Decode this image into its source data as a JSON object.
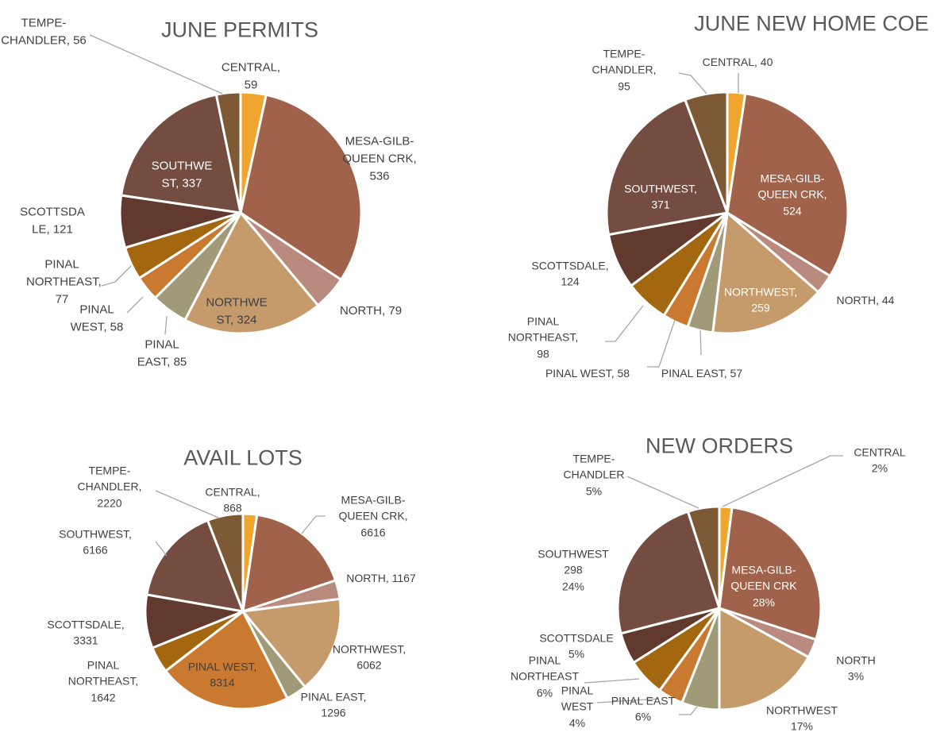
{
  "chart_data": [
    {
      "type": "pie",
      "title": "JUNE PERMITS",
      "categories": [
        "CENTRAL",
        "MESA-GILB-QUEEN CRK",
        "NORTH",
        "NORTHWEST",
        "PINAL EAST",
        "PINAL WEST",
        "PINAL NORTHEAST",
        "SCOTTSDALE",
        "SOUTHWEST",
        "TEMPE-CHANDLER"
      ],
      "values": [
        59,
        536,
        79,
        324,
        85,
        58,
        77,
        121,
        337,
        56
      ],
      "colors": [
        "#f0a52f",
        "#a0624a",
        "#b98b7e",
        "#c59b6c",
        "#a19a78",
        "#c97a30",
        "#a3680f",
        "#623a2d",
        "#744d40",
        "#7d5935"
      ]
    },
    {
      "type": "pie",
      "title": "JUNE NEW HOME COE",
      "categories": [
        "CENTRAL",
        "MESA-GILB-QUEEN CRK",
        "NORTH",
        "NORTHWEST",
        "PINAL EAST",
        "PINAL WEST",
        "PINAL NORTHEAST",
        "SCOTTSDALE",
        "SOUTHWEST",
        "TEMPE-CHANDLER"
      ],
      "values": [
        40,
        524,
        44,
        259,
        57,
        58,
        98,
        124,
        371,
        95
      ],
      "colors": [
        "#f0a52f",
        "#a0624a",
        "#b98b7e",
        "#c59b6c",
        "#a19a78",
        "#c97a30",
        "#a3680f",
        "#623a2d",
        "#744d40",
        "#7d5935"
      ]
    },
    {
      "type": "pie",
      "title": "AVAIL LOTS",
      "categories": [
        "CENTRAL",
        "MESA-GILB-QUEEN CRK",
        "NORTH",
        "NORTHWEST",
        "PINAL EAST",
        "PINAL WEST",
        "PINAL NORTHEAST",
        "SCOTTSDALE",
        "SOUTHWEST",
        "TEMPE-CHANDLER"
      ],
      "values": [
        868,
        6616,
        1167,
        6062,
        1296,
        8314,
        1642,
        3331,
        6166,
        2220
      ],
      "colors": [
        "#f0a52f",
        "#a0624a",
        "#b98b7e",
        "#c59b6c",
        "#a19a78",
        "#c97a30",
        "#a3680f",
        "#623a2d",
        "#744d40",
        "#7d5935"
      ]
    },
    {
      "type": "pie",
      "title": "NEW ORDERS",
      "categories": [
        "CENTRAL",
        "MESA-GILB-QUEEN CRK",
        "NORTH",
        "NORTHWEST",
        "PINAL EAST",
        "PINAL WEST",
        "PINAL NORTHEAST",
        "SCOTTSDALE",
        "SOUTHWEST",
        "TEMPE-CHANDLER"
      ],
      "values": [
        2,
        28,
        3,
        17,
        6,
        4,
        6,
        5,
        24,
        5
      ],
      "value_labels": [
        "2%",
        "28%",
        "3%",
        "17%",
        "6%",
        "4%",
        "6%",
        "5%",
        "24%",
        "5%"
      ],
      "annotation": "298",
      "colors": [
        "#f0a52f",
        "#a0624a",
        "#b98b7e",
        "#c59b6c",
        "#a19a78",
        "#c97a30",
        "#a3680f",
        "#623a2d",
        "#744d40",
        "#7d5935"
      ]
    }
  ]
}
